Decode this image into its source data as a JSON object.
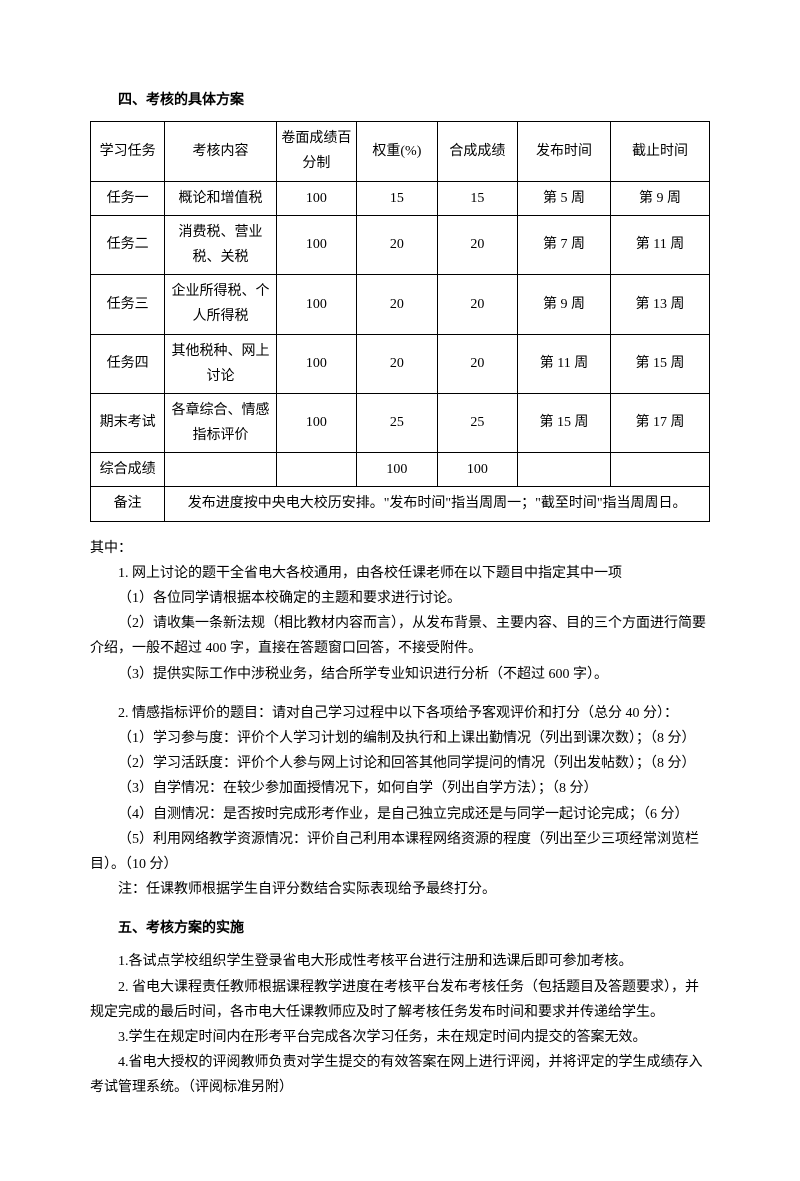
{
  "section4": {
    "title": "四、考核的具体方案",
    "table": {
      "headers": [
        "学习任务",
        "考核内容",
        "卷面成绩百分制",
        "权重(%)",
        "合成成绩",
        "发布时间",
        "截止时间"
      ],
      "rows": [
        [
          "任务一",
          "概论和增值税",
          "100",
          "15",
          "15",
          "第 5 周",
          "第 9 周"
        ],
        [
          "任务二",
          "消费税、营业税、关税",
          "100",
          "20",
          "20",
          "第 7 周",
          "第 11 周"
        ],
        [
          "任务三",
          "企业所得税、个人所得税",
          "100",
          "20",
          "20",
          "第 9 周",
          "第 13 周"
        ],
        [
          "任务四",
          "其他税种、网上讨论",
          "100",
          "20",
          "20",
          "第 11 周",
          "第 15 周"
        ],
        [
          "期末考试",
          "各章综合、情感指标评价",
          "100",
          "25",
          "25",
          "第 15 周",
          "第 17 周"
        ],
        [
          "综合成绩",
          "",
          "",
          "100",
          "100",
          "",
          ""
        ]
      ],
      "note_label": "备注",
      "note_text": "发布进度按中央电大校历安排。\"发布时间\"指当周周一；\"截至时间\"指当周周日。"
    },
    "intro": "其中：",
    "item1": {
      "lead": "1. 网上讨论的题干全省电大各校通用，由各校任课老师在以下题目中指定其中一项",
      "p1": "（1）各位同学请根据本校确定的主题和要求进行讨论。",
      "p2": "（2）请收集一条新法规（相比教材内容而言），从发布背景、主要内容、目的三个方面进行简要介绍，一般不超过 400 字，直接在答题窗口回答，不接受附件。",
      "p3": "（3）提供实际工作中涉税业务，结合所学专业知识进行分析（不超过 600 字）。"
    },
    "item2": {
      "lead": "2. 情感指标评价的题目：请对自己学习过程中以下各项给予客观评价和打分（总分 40 分）：",
      "p1": "（1）学习参与度：评价个人学习计划的编制及执行和上课出勤情况（列出到课次数）；（8 分）",
      "p2": "（2）学习活跃度：评价个人参与网上讨论和回答其他同学提问的情况（列出发帖数）；（8 分）",
      "p3": "（3）自学情况：在较少参加面授情况下，如何自学（列出自学方法）；（8 分）",
      "p4": "（4）自测情况：是否按时完成形考作业，是自己独立完成还是与同学一起讨论完成；（6 分）",
      "p5": "（5）利用网络教学资源情况：评价自己利用本课程网络资源的程度（列出至少三项经常浏览栏目）。（10 分）",
      "note": "注：任课教师根据学生自评分数结合实际表现给予最终打分。"
    }
  },
  "section5": {
    "title": "五、考核方案的实施",
    "p1": "1.各试点学校组织学生登录省电大形成性考核平台进行注册和选课后即可参加考核。",
    "p2": "2. 省电大课程责任教师根据课程教学进度在考核平台发布考核任务（包括题目及答题要求），并规定完成的最后时间，各市电大任课教师应及时了解考核任务发布时间和要求并传递给学生。",
    "p3": "3.学生在规定时间内在形考平台完成各次学习任务，未在规定时间内提交的答案无效。",
    "p4": "4.省电大授权的评阅教师负责对学生提交的有效答案在网上进行评阅，并将评定的学生成绩存入考试管理系统。（评阅标准另附）"
  }
}
